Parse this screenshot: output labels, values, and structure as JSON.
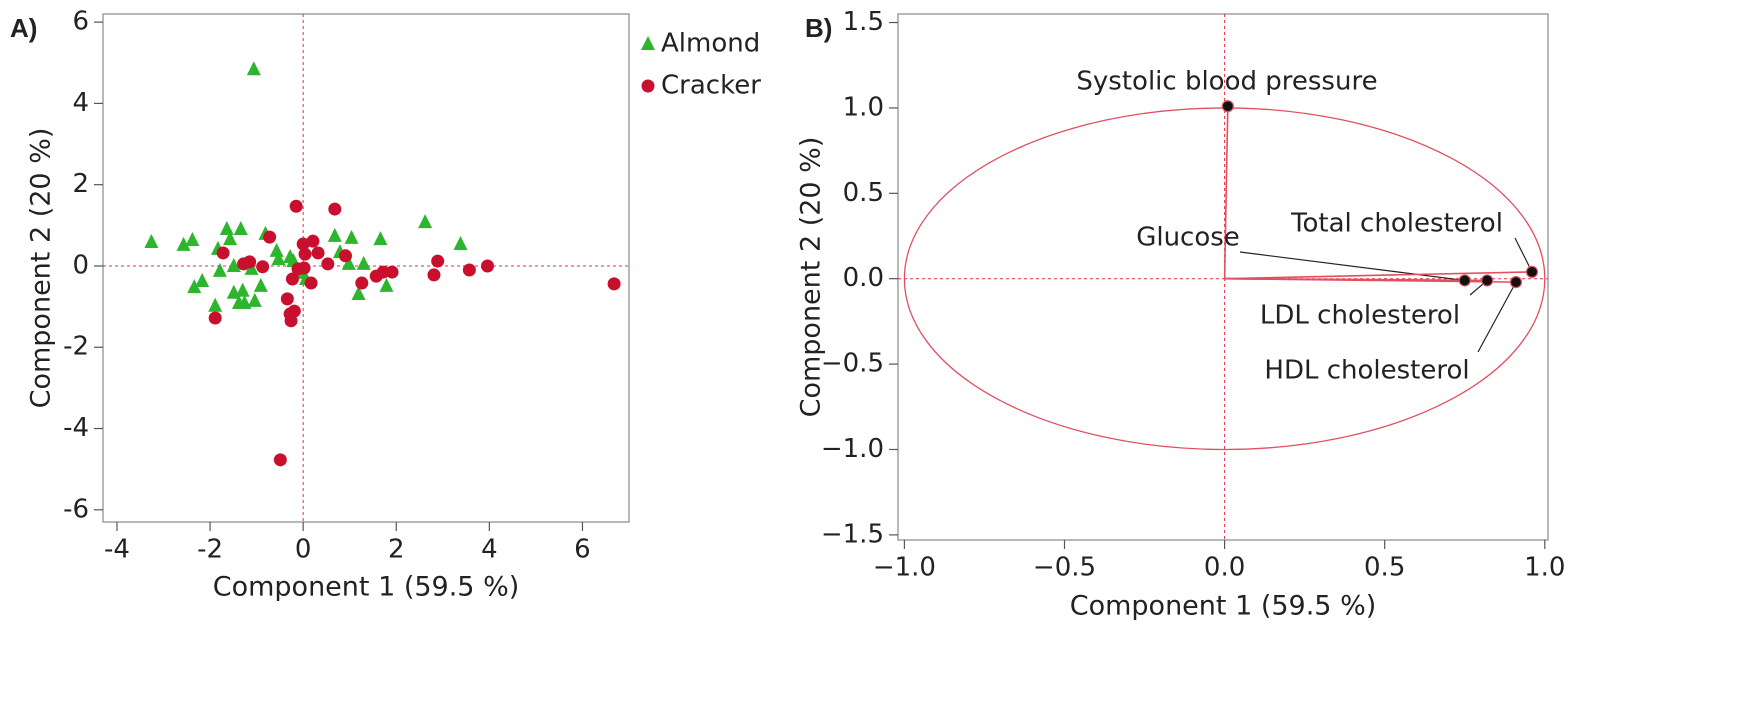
{
  "chart_data": [
    {
      "type": "scatter",
      "panel": "A)",
      "xlabel": "Component 1  (59.5 %)",
      "ylabel": "Component 2  (20 %)",
      "xlim": [
        -4.3,
        7.0
      ],
      "xticks": [
        -4,
        -2,
        0,
        2,
        4,
        6
      ],
      "ylim": [
        -6.3,
        6.2
      ],
      "yticks": [
        -6,
        -4,
        -2,
        0,
        2,
        4,
        6
      ],
      "series": [
        {
          "name": "Almond",
          "color": "#2db52d",
          "marker": "triangle",
          "x": [
            -1.06,
            -3.26,
            -2.57,
            -2.38,
            -2.34,
            -2.17,
            -1.89,
            -1.83,
            -1.79,
            -1.64,
            -1.57,
            -1.49,
            -1.49,
            -1.38,
            -1.34,
            -1.3,
            -1.26,
            -1.11,
            -1.04,
            -0.91,
            -0.81,
            -0.57,
            -0.53,
            -0.28,
            -0.21,
            -0.02,
            0.06,
            0.68,
            0.79,
            0.98,
            1.04,
            1.19,
            1.3,
            1.66,
            1.79,
            2.62,
            3.38
          ],
          "y": [
            4.84,
            0.59,
            0.52,
            0.64,
            -0.52,
            -0.37,
            -0.98,
            0.42,
            -0.12,
            0.91,
            0.66,
            0.0,
            -0.66,
            -0.91,
            0.91,
            -0.61,
            -0.91,
            -0.07,
            -0.86,
            -0.49,
            0.79,
            0.37,
            0.17,
            0.22,
            0.12,
            -0.17,
            -0.32,
            0.74,
            0.34,
            0.05,
            0.69,
            -0.69,
            0.05,
            0.66,
            -0.49,
            1.08,
            0.54
          ]
        },
        {
          "name": "Cracker",
          "color": "#c8102e",
          "marker": "circle",
          "x": [
            -1.72,
            -1.89,
            -1.28,
            -1.15,
            -0.87,
            -0.72,
            -0.34,
            -0.28,
            -0.26,
            -0.23,
            -0.19,
            -0.15,
            -0.11,
            0.0,
            0.02,
            0.04,
            0.17,
            0.21,
            0.32,
            0.53,
            0.68,
            0.91,
            1.26,
            1.57,
            1.72,
            1.91,
            2.81,
            2.89,
            3.57,
            3.96,
            6.68,
            -0.49
          ],
          "y": [
            0.32,
            -1.28,
            0.05,
            0.1,
            -0.02,
            0.71,
            -0.81,
            -1.18,
            -1.35,
            -0.32,
            -1.11,
            1.47,
            -0.07,
            0.54,
            -0.05,
            0.29,
            -0.42,
            0.61,
            0.32,
            0.05,
            1.4,
            0.25,
            -0.42,
            -0.25,
            -0.15,
            -0.15,
            -0.22,
            0.12,
            -0.1,
            0.0,
            -0.44,
            -4.77
          ]
        }
      ]
    },
    {
      "type": "loading",
      "panel": "B)",
      "xlabel": "Component 1  (59.5 %)",
      "ylabel": "Component 2  (20 %)",
      "xlim": [
        -1.02,
        1.01
      ],
      "xticks": [
        {
          "value": -1,
          "label": "−1.0"
        },
        {
          "value": -0.5,
          "label": "−0.5"
        },
        {
          "value": 0,
          "label": "0.0"
        },
        {
          "value": 0.5,
          "label": "0.5"
        },
        {
          "value": 1,
          "label": "1.0"
        }
      ],
      "ylim": [
        -1.53,
        1.55
      ],
      "yticks": [
        {
          "value": -1.5,
          "label": "−1.5"
        },
        {
          "value": -1,
          "label": "−1.0"
        },
        {
          "value": -0.5,
          "label": "−0.5"
        },
        {
          "value": 0,
          "label": "0.0"
        },
        {
          "value": 0.5,
          "label": "0.5"
        },
        {
          "value": 1,
          "label": "1.0"
        },
        {
          "value": 1.5,
          "label": "1.5"
        }
      ],
      "color": "#e05060",
      "points": [
        {
          "label": "Systolic blood pressure",
          "x": 0.01,
          "y": 1.01
        },
        {
          "label": "Glucose",
          "x": 0.75,
          "y": -0.01
        },
        {
          "label": "LDL cholesterol",
          "x": 0.82,
          "y": -0.01
        },
        {
          "label": "HDL cholesterol",
          "x": 0.91,
          "y": -0.02
        },
        {
          "label": "Total cholesterol",
          "x": 0.96,
          "y": 0.04
        }
      ]
    }
  ]
}
